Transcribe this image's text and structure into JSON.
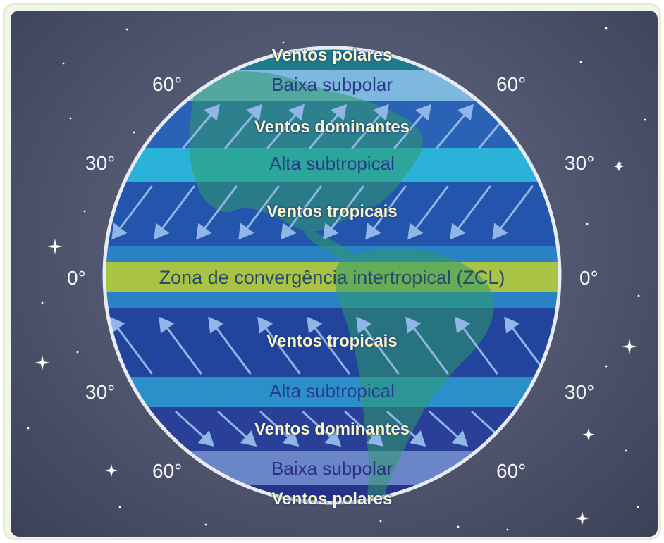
{
  "title": "",
  "colors": {
    "polar_band": "#1f7b8a",
    "subpolar_band": "#7fb8df",
    "dominant_band": "#2a63b6",
    "subtropical_band": "#2bb2d8",
    "tropical_band": "#2455ac",
    "zcl_band": "#a9c445",
    "land": "#2d9a6a",
    "space": "#545a73"
  },
  "latitudes": {
    "north_60": "60°",
    "north_30": "30°",
    "equator": "0°",
    "south_30": "30°",
    "south_60": "60°"
  },
  "bands": {
    "north_polar_winds": "Ventos polares",
    "north_subpolar_low": "Baixa subpolar",
    "north_dominant_winds": "Ventos dominantes",
    "north_subtropical_high": "Alta subtropical",
    "north_tropical_winds": "Ventos tropicais",
    "itcz": "Zona de convergência intertropical (ZCL)",
    "south_tropical_winds": "Ventos tropicais",
    "south_subtropical_high": "Alta subtropical",
    "south_dominant_winds": "Ventos dominantes",
    "south_subpolar_low": "Baixa subpolar",
    "south_polar_winds": "Ventos polares"
  }
}
